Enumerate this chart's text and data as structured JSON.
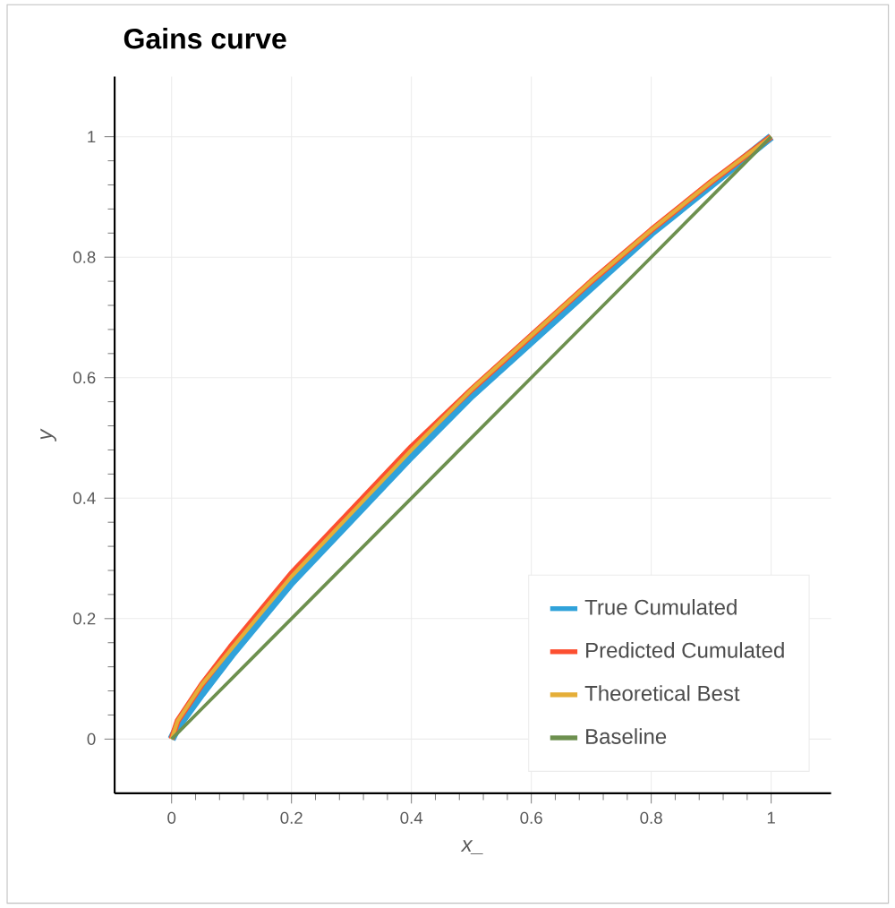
{
  "chart_data": {
    "type": "line",
    "title": "Gains curve",
    "xlabel": "x_",
    "ylabel": "y",
    "x": [
      0,
      0.01,
      0.05,
      0.1,
      0.2,
      0.3,
      0.4,
      0.5,
      0.6,
      0.7,
      0.8,
      0.9,
      1
    ],
    "series": [
      {
        "name": "True Cumulated",
        "color": "#30a2da",
        "values": [
          0,
          0.02,
          0.075,
          0.14,
          0.26,
          0.365,
          0.47,
          0.57,
          0.66,
          0.75,
          0.84,
          0.92,
          1
        ]
      },
      {
        "name": "Predicted Cumulated",
        "color": "#fc4f30",
        "values": [
          0,
          0.03,
          0.09,
          0.155,
          0.275,
          0.38,
          0.485,
          0.58,
          0.67,
          0.76,
          0.845,
          0.925,
          1
        ]
      },
      {
        "name": "Theoretical Best",
        "color": "#e5ae38",
        "values": [
          0,
          0.03,
          0.09,
          0.15,
          0.27,
          0.375,
          0.48,
          0.58,
          0.67,
          0.76,
          0.845,
          0.925,
          1
        ]
      },
      {
        "name": "Baseline",
        "color": "#6d904f",
        "values": [
          0,
          0.01,
          0.05,
          0.1,
          0.2,
          0.3,
          0.4,
          0.5,
          0.6,
          0.7,
          0.8,
          0.9,
          1
        ]
      }
    ],
    "xlim": [
      -0.095,
      1.1
    ],
    "ylim": [
      -0.09,
      1.1
    ],
    "xticks": [
      0,
      0.2,
      0.4,
      0.6,
      0.8,
      1
    ],
    "yticks": [
      0,
      0.2,
      0.4,
      0.6,
      0.8,
      1
    ],
    "grid": true,
    "legend": "bottom right",
    "marker": "none",
    "line_style": "solid"
  }
}
